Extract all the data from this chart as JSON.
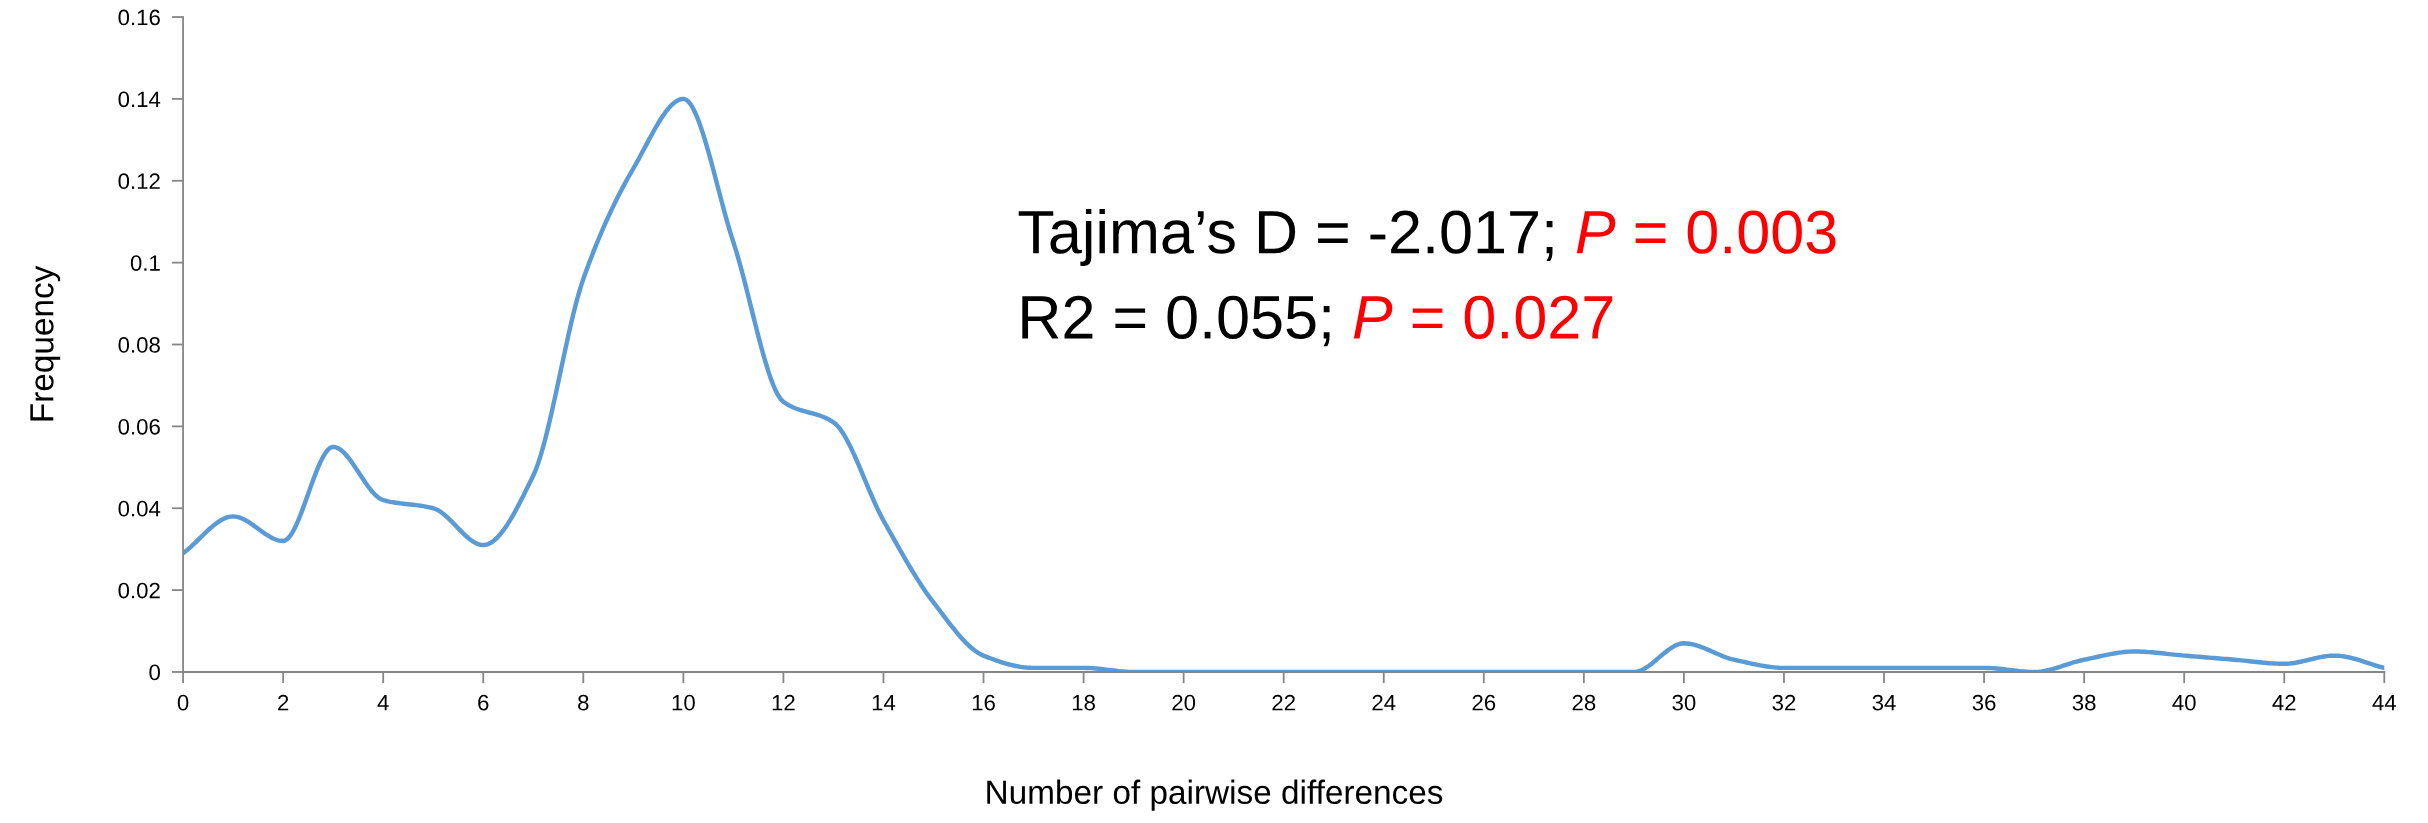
{
  "chart_data": {
    "type": "line",
    "xlabel": "Number of pairwise differences",
    "ylabel": "Frequency",
    "x": [
      0,
      1,
      2,
      3,
      4,
      5,
      6,
      7,
      8,
      9,
      10,
      11,
      12,
      13,
      14,
      15,
      16,
      17,
      18,
      19,
      20,
      21,
      22,
      23,
      24,
      25,
      26,
      27,
      28,
      29,
      30,
      31,
      32,
      33,
      34,
      35,
      36,
      37,
      38,
      39,
      40,
      41,
      42,
      43,
      44
    ],
    "series": [
      {
        "color": "#5b9bd5",
        "values": [
          0.029,
          0.038,
          0.032,
          0.055,
          0.042,
          0.04,
          0.031,
          0.048,
          0.096,
          0.123,
          0.14,
          0.105,
          0.066,
          0.061,
          0.037,
          0.017,
          0.004,
          0.001,
          0.001,
          0,
          0,
          0,
          0,
          0,
          0,
          0,
          0,
          0,
          0,
          0,
          0.007,
          0.003,
          0.001,
          0.001,
          0.001,
          0.001,
          0.001,
          0,
          0.003,
          0.005,
          0.004,
          0.003,
          0.002,
          0.004,
          0.001
        ]
      }
    ],
    "xlim": [
      0,
      44
    ],
    "xticks": [
      0,
      2,
      4,
      6,
      8,
      10,
      12,
      14,
      16,
      18,
      20,
      22,
      24,
      26,
      28,
      30,
      32,
      34,
      36,
      38,
      40,
      42,
      44
    ],
    "ylim": [
      0,
      0.16
    ],
    "yticks": [
      {
        "value": 0,
        "label": "0"
      },
      {
        "value": 0.02,
        "label": "0.02"
      },
      {
        "value": 0.04,
        "label": "0.04"
      },
      {
        "value": 0.06,
        "label": "0.06"
      },
      {
        "value": 0.08,
        "label": "0.08"
      },
      {
        "value": 0.1,
        "label": "0.1"
      },
      {
        "value": 0.12,
        "label": "0.12"
      },
      {
        "value": 0.14,
        "label": "0.14"
      },
      {
        "value": 0.16,
        "label": "0.16"
      }
    ],
    "grid": false,
    "legend": false,
    "marker": "none",
    "line_style": "solid",
    "annotations": [
      "Tajima’s D = -2.017; P = 0.003",
      "R2 = 0.055; P = 0.027"
    ]
  }
}
